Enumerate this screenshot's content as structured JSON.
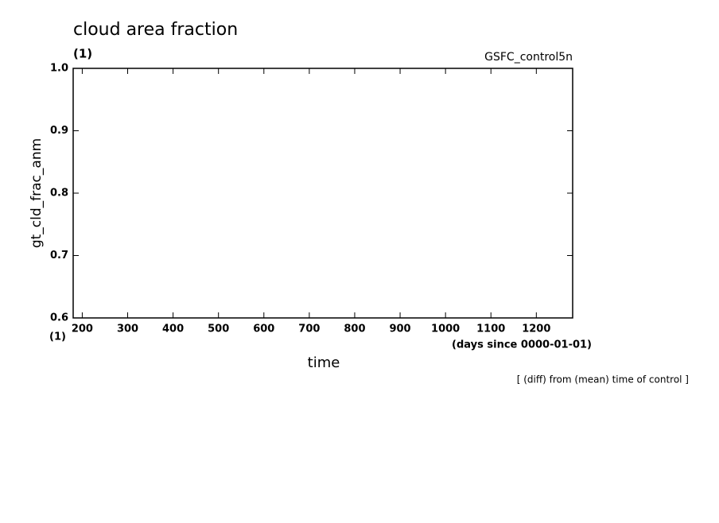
{
  "chart_data": {
    "type": "line",
    "title": "cloud area fraction",
    "y_units": "(1)",
    "run_name": "GSFC_control5n",
    "ylabel": "gt_cld_frac_anm",
    "x_units_corner": "(1)",
    "xlabel": "time",
    "x_units": "(days since 0000-01-01)",
    "annotation": "[ (diff) from (mean) time of control ]",
    "xlim": [
      180,
      1280
    ],
    "xticks": [
      200,
      300,
      400,
      500,
      600,
      700,
      800,
      900,
      1000,
      1100,
      1200
    ],
    "ylim": [
      0.6,
      1
    ],
    "yticks": [
      0.6,
      0.7,
      0.8,
      0.9,
      {
        "value": 1,
        "label": "1.0"
      }
    ]
  }
}
